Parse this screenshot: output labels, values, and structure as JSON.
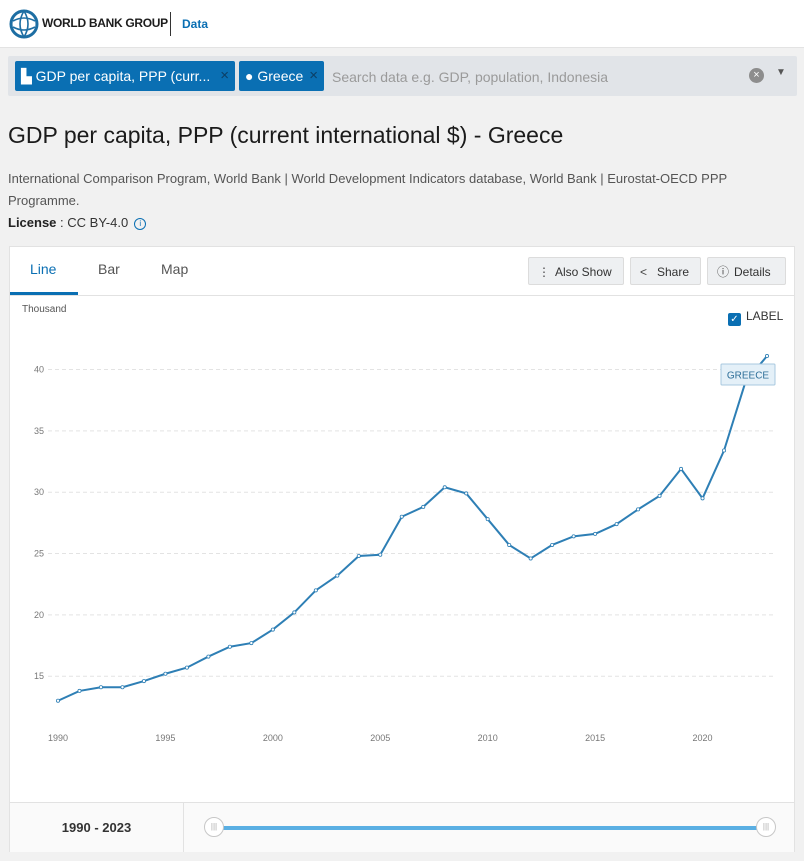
{
  "header": {
    "logo_text": "WORLD BANK GROUP",
    "section": "Data"
  },
  "search": {
    "chips": [
      {
        "icon": "bar-chart-icon",
        "label": "GDP per capita, PPP (curr..."
      },
      {
        "icon": "map-pin-icon",
        "label": "Greece"
      }
    ],
    "placeholder": "Search data e.g. GDP, population, Indonesia",
    "value": ""
  },
  "page": {
    "title": "GDP per capita, PPP (current international $) - Greece",
    "source": "International Comparison Program, World Bank | World Development Indicators database, World Bank | Eurostat-OECD PPP Programme.",
    "license_label": "License",
    "license_value": " : CC BY-4.0"
  },
  "tabs": [
    "Line",
    "Bar",
    "Map"
  ],
  "toolbar": {
    "also_show": "Also Show",
    "share": "Share",
    "details": "Details"
  },
  "label_toggle": {
    "label": "LABEL",
    "checked": true
  },
  "footer": {
    "range_text": "1990 - 2023",
    "range_start": 1990,
    "range_end": 2023
  },
  "colors": {
    "accent": "#0a6fb3",
    "line": "#2e7fb5",
    "slider": "#5aafe3"
  },
  "chart_data": {
    "type": "line",
    "ylabel": "Thousand",
    "ylim": [
      12,
      42
    ],
    "yticks": [
      15,
      20,
      25,
      30,
      35,
      40
    ],
    "xlim": [
      1990,
      2023
    ],
    "xticks": [
      1990,
      1995,
      2000,
      2005,
      2010,
      2015,
      2020
    ],
    "grid": true,
    "series": [
      {
        "name": "GREECE",
        "x": [
          1990,
          1991,
          1992,
          1993,
          1994,
          1995,
          1996,
          1997,
          1998,
          1999,
          2000,
          2001,
          2002,
          2003,
          2004,
          2005,
          2006,
          2007,
          2008,
          2009,
          2010,
          2011,
          2012,
          2013,
          2014,
          2015,
          2016,
          2017,
          2018,
          2019,
          2020,
          2021,
          2022,
          2023
        ],
        "values": [
          13.0,
          13.8,
          14.1,
          14.1,
          14.6,
          15.2,
          15.7,
          16.6,
          17.4,
          17.7,
          18.8,
          20.2,
          22.0,
          23.2,
          24.8,
          24.9,
          28.0,
          28.8,
          30.4,
          29.9,
          27.8,
          25.7,
          24.6,
          25.7,
          26.4,
          26.6,
          27.4,
          28.6,
          29.7,
          31.9,
          29.5,
          33.4,
          39.0,
          41.1
        ]
      }
    ]
  }
}
